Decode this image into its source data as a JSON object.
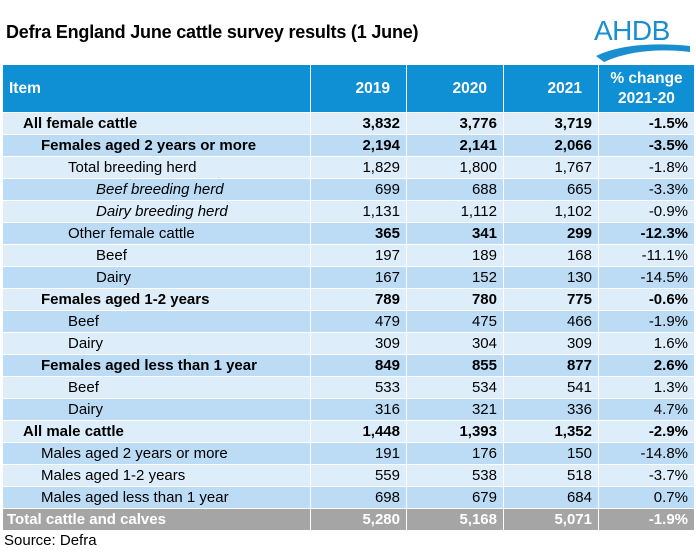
{
  "title": "Defra England June cattle survey results (1 June)",
  "logo": {
    "text": "AHDB",
    "color": "#1a8fd0"
  },
  "colors": {
    "header": "#0f8fd4",
    "row_light": "#ddeefa",
    "row_dark": "#bcdcf5",
    "total": "#a5a5a5"
  },
  "table": {
    "headers": {
      "item": "Item",
      "y2019": "2019",
      "y2020": "2020",
      "y2021": "2021",
      "change_line1": "% change",
      "change_line2": "2021-20"
    },
    "rows": [
      {
        "item": "All female cattle",
        "indent": 0,
        "bold": true,
        "italic": false,
        "v2019": "3,832",
        "v2020": "3,776",
        "v2021": "3,719",
        "change": "-1.5%"
      },
      {
        "item": "Females aged 2 years or more",
        "indent": 1,
        "bold": true,
        "italic": false,
        "v2019": "2,194",
        "v2020": "2,141",
        "v2021": "2,066",
        "change": "-3.5%"
      },
      {
        "item": "Total breeding herd",
        "indent": 2,
        "bold": false,
        "italic": false,
        "v2019": "1,829",
        "v2020": "1,800",
        "v2021": "1,767",
        "change": "-1.8%"
      },
      {
        "item": "Beef breeding herd",
        "indent": 3,
        "bold": false,
        "italic": true,
        "v2019": "699",
        "v2020": "688",
        "v2021": "665",
        "change": "-3.3%"
      },
      {
        "item": "Dairy breeding herd",
        "indent": 3,
        "bold": false,
        "italic": true,
        "v2019": "1,131",
        "v2020": "1,112",
        "v2021": "1,102",
        "change": "-0.9%"
      },
      {
        "item": "Other female cattle",
        "indent": 2,
        "bold": true,
        "italic": false,
        "item_plain": true,
        "v2019": "365",
        "v2020": "341",
        "v2021": "299",
        "change": "-12.3%"
      },
      {
        "item": "Beef",
        "indent": 3,
        "bold": false,
        "italic": false,
        "v2019": "197",
        "v2020": "189",
        "v2021": "168",
        "change": "-11.1%"
      },
      {
        "item": "Dairy",
        "indent": 3,
        "bold": false,
        "italic": false,
        "v2019": "167",
        "v2020": "152",
        "v2021": "130",
        "change": "-14.5%"
      },
      {
        "item": "Females aged 1-2 years",
        "indent": 1,
        "bold": true,
        "italic": false,
        "v2019": "789",
        "v2020": "780",
        "v2021": "775",
        "change": "-0.6%"
      },
      {
        "item": "Beef",
        "indent": 2,
        "bold": false,
        "italic": false,
        "v2019": "479",
        "v2020": "475",
        "v2021": "466",
        "change": "-1.9%"
      },
      {
        "item": "Dairy",
        "indent": 2,
        "bold": false,
        "italic": false,
        "v2019": "309",
        "v2020": "304",
        "v2021": "309",
        "change": "1.6%"
      },
      {
        "item": "Females aged less than 1 year",
        "indent": 1,
        "bold": true,
        "italic": false,
        "v2019": "849",
        "v2020": "855",
        "v2021": "877",
        "change": "2.6%"
      },
      {
        "item": "Beef",
        "indent": 2,
        "bold": false,
        "italic": false,
        "v2019": "533",
        "v2020": "534",
        "v2021": "541",
        "change": "1.3%"
      },
      {
        "item": "Dairy",
        "indent": 2,
        "bold": false,
        "italic": false,
        "v2019": "316",
        "v2020": "321",
        "v2021": "336",
        "change": "4.7%"
      },
      {
        "item": "All male cattle",
        "indent": 0,
        "bold": true,
        "italic": false,
        "v2019": "1,448",
        "v2020": "1,393",
        "v2021": "1,352",
        "change": "-2.9%"
      },
      {
        "item": "Males aged 2 years or more",
        "indent": 1,
        "bold": false,
        "italic": false,
        "v2019": "191",
        "v2020": "176",
        "v2021": "150",
        "change": "-14.8%"
      },
      {
        "item": "Males aged 1-2 years",
        "indent": 1,
        "bold": false,
        "italic": false,
        "v2019": "559",
        "v2020": "538",
        "v2021": "518",
        "change": "-3.7%"
      },
      {
        "item": "Males aged less than 1 year",
        "indent": 1,
        "bold": false,
        "italic": false,
        "v2019": "698",
        "v2020": "679",
        "v2021": "684",
        "change": "0.7%"
      }
    ],
    "total": {
      "item": "Total cattle and calves",
      "v2019": "5,280",
      "v2020": "5,168",
      "v2021": "5,071",
      "change": "-1.9%"
    }
  },
  "source": "Source: Defra"
}
